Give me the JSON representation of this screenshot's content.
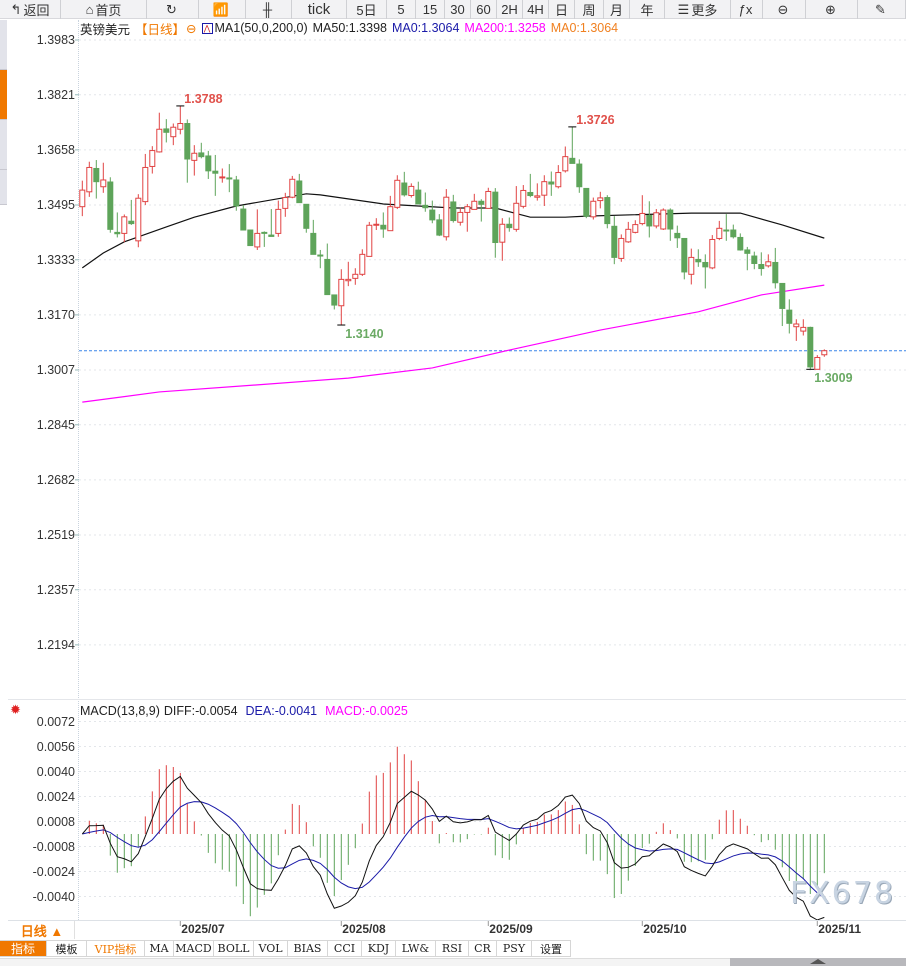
{
  "toolbar": {
    "items": [
      {
        "label": "返回",
        "icon": "back-arrow-icon",
        "glyph": "↰"
      },
      {
        "label": "首页",
        "icon": "home-icon",
        "glyph": "⌂"
      },
      {
        "label": "",
        "icon": "refresh-icon",
        "glyph": "↻"
      },
      {
        "label": "",
        "icon": "chart-type-icon",
        "glyph": "📶"
      },
      {
        "label": "",
        "icon": "candlestick-icon",
        "glyph": "╫"
      },
      {
        "label": "tick",
        "icon": "",
        "glyph": ""
      },
      {
        "label": "5日",
        "icon": "",
        "glyph": ""
      },
      {
        "label": "5",
        "icon": "",
        "glyph": ""
      },
      {
        "label": "15",
        "icon": "",
        "glyph": ""
      },
      {
        "label": "30",
        "icon": "",
        "glyph": ""
      },
      {
        "label": "60",
        "icon": "",
        "glyph": ""
      },
      {
        "label": "2H",
        "icon": "",
        "glyph": ""
      },
      {
        "label": "4H",
        "icon": "",
        "glyph": ""
      },
      {
        "label": "日",
        "icon": "",
        "glyph": ""
      },
      {
        "label": "周",
        "icon": "",
        "glyph": ""
      },
      {
        "label": "月",
        "icon": "",
        "glyph": ""
      },
      {
        "label": "年",
        "icon": "",
        "glyph": ""
      },
      {
        "label": "更多",
        "icon": "menu-icon",
        "glyph": "☰"
      },
      {
        "label": "",
        "icon": "fx-formula-icon",
        "glyph": "ƒx"
      },
      {
        "label": "",
        "icon": "zoom-out-icon",
        "glyph": "⊖"
      },
      {
        "label": "",
        "icon": "zoom-in-icon",
        "glyph": "⊕"
      },
      {
        "label": "",
        "icon": "pen-icon",
        "glyph": "✎"
      }
    ]
  },
  "header": {
    "symbol": "英镑美元",
    "period": "【日线】",
    "ma_set": "MA1(50,0,200,0)",
    "ma50": "MA50:1.3398",
    "ma0a": "MA0:1.3064",
    "ma200": "MA200:1.3258",
    "ma0b": "MA0:1.3064"
  },
  "macd_header": {
    "params": "MACD(13,8,9)",
    "diff": "DIFF:-0.0054",
    "dea": "DEA:-0.0041",
    "macd": "MACD:-0.0025"
  },
  "colors": {
    "up": "#e04343",
    "down": "#5ea45a",
    "ma50": "#111111",
    "ma200": "#ff00ff",
    "dea": "#1a1aa8",
    "diff": "#111111",
    "last_price": "#3a86e8",
    "accent": "#f07800",
    "ma0": "#1a1aa8",
    "ma0b": "#f08020"
  },
  "chart_data": [
    {
      "type": "candlestick",
      "y_ticks": [
        "1.3983",
        "1.3821",
        "1.3658",
        "1.3495",
        "1.3333",
        "1.3170",
        "1.3007",
        "1.2845",
        "1.2682",
        "1.2519",
        "1.2357",
        "1.2194"
      ],
      "ylim": [
        1.2194,
        1.3983
      ],
      "x_labels": [
        {
          "label": "2025/07",
          "index": 14
        },
        {
          "label": "2025/08",
          "index": 37
        },
        {
          "label": "2025/09",
          "index": 58
        },
        {
          "label": "2025/10",
          "index": 80
        },
        {
          "label": "2025/11",
          "index": 105
        }
      ],
      "last_price": 1.3064,
      "annotations": [
        {
          "label": "1.3788",
          "index": 14,
          "value": 1.3788,
          "kind": "high"
        },
        {
          "label": "1.3726",
          "index": 70,
          "value": 1.3726,
          "kind": "high"
        },
        {
          "label": "1.3140",
          "index": 37,
          "value": 1.314,
          "kind": "low"
        },
        {
          "label": "1.3009",
          "index": 104,
          "value": 1.3009,
          "kind": "low"
        }
      ],
      "ohlc": [
        [
          1.349,
          1.3567,
          1.3462,
          1.3539
        ],
        [
          1.3534,
          1.3623,
          1.3519,
          1.3606
        ],
        [
          1.3603,
          1.3628,
          1.3514,
          1.3564
        ],
        [
          1.3549,
          1.362,
          1.3531,
          1.3569
        ],
        [
          1.3563,
          1.3577,
          1.3413,
          1.3423
        ],
        [
          1.3414,
          1.3473,
          1.3399,
          1.341
        ],
        [
          1.3411,
          1.3467,
          1.3385,
          1.346
        ],
        [
          1.3447,
          1.351,
          1.3436,
          1.344
        ],
        [
          1.3389,
          1.3527,
          1.337,
          1.3515
        ],
        [
          1.3505,
          1.3646,
          1.3495,
          1.3606
        ],
        [
          1.3609,
          1.3669,
          1.3588,
          1.3656
        ],
        [
          1.3652,
          1.3768,
          1.365,
          1.3719
        ],
        [
          1.372,
          1.3749,
          1.368,
          1.371
        ],
        [
          1.3697,
          1.3736,
          1.3672,
          1.3725
        ],
        [
          1.3719,
          1.3788,
          1.3704,
          1.3736
        ],
        [
          1.3736,
          1.3748,
          1.3561,
          1.3631
        ],
        [
          1.3627,
          1.3672,
          1.3582,
          1.3648
        ],
        [
          1.3649,
          1.3679,
          1.3633,
          1.3638
        ],
        [
          1.364,
          1.3655,
          1.3572,
          1.3596
        ],
        [
          1.3595,
          1.3643,
          1.3522,
          1.3589
        ],
        [
          1.3577,
          1.3603,
          1.3561,
          1.3578
        ],
        [
          1.3575,
          1.3616,
          1.3533,
          1.3574
        ],
        [
          1.3569,
          1.3581,
          1.3478,
          1.3492
        ],
        [
          1.3483,
          1.3495,
          1.3421,
          1.3421
        ],
        [
          1.3421,
          1.3421,
          1.3375,
          1.3375
        ],
        [
          1.3371,
          1.3482,
          1.3362,
          1.3411
        ],
        [
          1.3414,
          1.3417,
          1.3371,
          1.3413
        ],
        [
          1.3406,
          1.3483,
          1.3402,
          1.3402
        ],
        [
          1.3411,
          1.3508,
          1.3401,
          1.3482
        ],
        [
          1.3485,
          1.3531,
          1.346,
          1.3517
        ],
        [
          1.3518,
          1.3581,
          1.3515,
          1.3571
        ],
        [
          1.3566,
          1.3587,
          1.3502,
          1.3502
        ],
        [
          1.3497,
          1.3497,
          1.3413,
          1.3426
        ],
        [
          1.3411,
          1.3451,
          1.3349,
          1.3349
        ],
        [
          1.3347,
          1.3362,
          1.3308,
          1.3344
        ],
        [
          1.3334,
          1.3381,
          1.323,
          1.323
        ],
        [
          1.3229,
          1.3229,
          1.3186,
          1.3199
        ],
        [
          1.3197,
          1.3305,
          1.314,
          1.3275
        ],
        [
          1.3271,
          1.3327,
          1.3255,
          1.3275
        ],
        [
          1.3278,
          1.3308,
          1.3259,
          1.329
        ],
        [
          1.329,
          1.3364,
          1.3285,
          1.3349
        ],
        [
          1.3343,
          1.3445,
          1.3343,
          1.3435
        ],
        [
          1.3437,
          1.3456,
          1.3421,
          1.3438
        ],
        [
          1.3435,
          1.3473,
          1.3398,
          1.3424
        ],
        [
          1.3419,
          1.3522,
          1.3419,
          1.349
        ],
        [
          1.3488,
          1.3583,
          1.3483,
          1.3568
        ],
        [
          1.356,
          1.3593,
          1.352,
          1.3525
        ],
        [
          1.3523,
          1.3559,
          1.3517,
          1.355
        ],
        [
          1.3539,
          1.3564,
          1.3498,
          1.3498
        ],
        [
          1.3494,
          1.3532,
          1.3475,
          1.3487
        ],
        [
          1.348,
          1.3508,
          1.3441,
          1.3451
        ],
        [
          1.3451,
          1.3468,
          1.3403,
          1.3406
        ],
        [
          1.3401,
          1.3542,
          1.339,
          1.3518
        ],
        [
          1.3504,
          1.3525,
          1.3443,
          1.3449
        ],
        [
          1.3444,
          1.3487,
          1.3434,
          1.3473
        ],
        [
          1.3473,
          1.3498,
          1.3416,
          1.349
        ],
        [
          1.3482,
          1.3528,
          1.3482,
          1.3506
        ],
        [
          1.3506,
          1.3512,
          1.3446,
          1.3497
        ],
        [
          1.3485,
          1.3546,
          1.3485,
          1.3535
        ],
        [
          1.3533,
          1.3545,
          1.3339,
          1.3384
        ],
        [
          1.3385,
          1.3456,
          1.333,
          1.3438
        ],
        [
          1.3438,
          1.3458,
          1.3416,
          1.3428
        ],
        [
          1.3423,
          1.3551,
          1.3416,
          1.35
        ],
        [
          1.3491,
          1.3554,
          1.3485,
          1.3538
        ],
        [
          1.3532,
          1.3587,
          1.3518,
          1.3523
        ],
        [
          1.3518,
          1.3559,
          1.3508,
          1.3522
        ],
        [
          1.3524,
          1.3583,
          1.3492,
          1.3564
        ],
        [
          1.3563,
          1.3594,
          1.3522,
          1.3557
        ],
        [
          1.3549,
          1.3613,
          1.3544,
          1.3591
        ],
        [
          1.3596,
          1.3668,
          1.3591,
          1.3638
        ],
        [
          1.3633,
          1.3726,
          1.3618,
          1.3618
        ],
        [
          1.3616,
          1.363,
          1.3531,
          1.3549
        ],
        [
          1.3544,
          1.3544,
          1.3456,
          1.3462
        ],
        [
          1.346,
          1.3517,
          1.3452,
          1.3506
        ],
        [
          1.3508,
          1.3534,
          1.3485,
          1.3516
        ],
        [
          1.3517,
          1.3524,
          1.3426,
          1.344
        ],
        [
          1.3432,
          1.3462,
          1.332,
          1.334
        ],
        [
          1.3337,
          1.3408,
          1.3327,
          1.3396
        ],
        [
          1.3386,
          1.3445,
          1.3383,
          1.3423
        ],
        [
          1.3414,
          1.345,
          1.3411,
          1.3437
        ],
        [
          1.344,
          1.3524,
          1.3435,
          1.347
        ],
        [
          1.3464,
          1.3506,
          1.3399,
          1.3433
        ],
        [
          1.3433,
          1.3483,
          1.3426,
          1.3472
        ],
        [
          1.3424,
          1.3485,
          1.3421,
          1.348
        ],
        [
          1.348,
          1.3485,
          1.3389,
          1.3424
        ],
        [
          1.3411,
          1.3434,
          1.3368,
          1.3398
        ],
        [
          1.3396,
          1.3396,
          1.3275,
          1.3297
        ],
        [
          1.329,
          1.3366,
          1.326,
          1.334
        ],
        [
          1.3334,
          1.3364,
          1.3312,
          1.3327
        ],
        [
          1.3325,
          1.3349,
          1.3248,
          1.3312
        ],
        [
          1.3309,
          1.3406,
          1.3305,
          1.3393
        ],
        [
          1.3396,
          1.3448,
          1.3391,
          1.3426
        ],
        [
          1.3421,
          1.3468,
          1.3389,
          1.342
        ],
        [
          1.3421,
          1.3437,
          1.3396,
          1.3401
        ],
        [
          1.3399,
          1.3411,
          1.336,
          1.3362
        ],
        [
          1.3362,
          1.3371,
          1.3302,
          1.3352
        ],
        [
          1.3344,
          1.3357,
          1.3305,
          1.3322
        ],
        [
          1.3319,
          1.3355,
          1.3286,
          1.3307
        ],
        [
          1.3315,
          1.3349,
          1.331,
          1.3327
        ],
        [
          1.3325,
          1.3368,
          1.3248,
          1.3265
        ],
        [
          1.3263,
          1.3263,
          1.3137,
          1.3189
        ],
        [
          1.3184,
          1.3216,
          1.3115,
          1.3145
        ],
        [
          1.3135,
          1.3157,
          1.3093,
          1.3143
        ],
        [
          1.3122,
          1.3157,
          1.3109,
          1.3133
        ],
        [
          1.3133,
          1.3135,
          1.3009,
          1.3016
        ],
        [
          1.3009,
          1.3051,
          1.3009,
          1.3044
        ],
        [
          1.3052,
          1.3068,
          1.3046,
          1.3064
        ]
      ],
      "ma50": [
        [
          0,
          1.3309
        ],
        [
          3,
          1.3353
        ],
        [
          6,
          1.3386
        ],
        [
          12,
          1.343
        ],
        [
          16,
          1.3459
        ],
        [
          22,
          1.3492
        ],
        [
          32,
          1.3528
        ],
        [
          34,
          1.3525
        ],
        [
          43,
          1.3498
        ],
        [
          53,
          1.3486
        ],
        [
          59,
          1.3486
        ],
        [
          64,
          1.3459
        ],
        [
          69,
          1.3459
        ],
        [
          72,
          1.3462
        ],
        [
          87,
          1.3471
        ],
        [
          94,
          1.3471
        ],
        [
          100,
          1.3436
        ],
        [
          106,
          1.3397
        ]
      ],
      "ma200": [
        [
          0,
          1.2912
        ],
        [
          11,
          1.2942
        ],
        [
          25,
          1.2963
        ],
        [
          38,
          1.2983
        ],
        [
          50,
          1.3013
        ],
        [
          61,
          1.3066
        ],
        [
          74,
          1.3125
        ],
        [
          88,
          1.3179
        ],
        [
          97,
          1.3229
        ],
        [
          106,
          1.3258
        ]
      ]
    },
    {
      "type": "macd",
      "params": {
        "short": 8,
        "long": 13,
        "signal": 9
      },
      "y_ticks": [
        "0.0072",
        "0.0056",
        "0.0040",
        "0.0024",
        "0.0008",
        "-0.0008",
        "-0.0024",
        "-0.0040"
      ]
    }
  ],
  "period_label": "日线 ▲",
  "watermark": "FX678",
  "bottom_tabs": [
    "指标",
    "模板",
    "VIP指标",
    "MA",
    "MACD",
    "BOLL",
    "VOL",
    "BIAS",
    "CCI",
    "KDJ",
    "LW&",
    "RSI",
    "CR",
    "PSY",
    "设置"
  ]
}
